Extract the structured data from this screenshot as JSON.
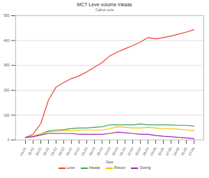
{
  "chart_data": {
    "type": "line",
    "title": "MCT Leve volume Inkaas",
    "subtitle": "Cabot cuts",
    "x_label": "Date",
    "categories": [
      "04-01",
      "11-01",
      "18-01",
      "25-01",
      "01-02",
      "08-02",
      "15-02",
      "22-02",
      "01-03",
      "08-03",
      "15-03",
      "22-03",
      "29-03",
      "05-04",
      "12-04",
      "19-04",
      "26-04",
      "03-05",
      "10-05",
      "17-05",
      "24-05",
      "31-05",
      "07-06"
    ],
    "series": [
      {
        "name": "Leve",
        "color": "#ea4335",
        "values": [
          10,
          23,
          66,
          160,
          213,
          231,
          247,
          258,
          274,
          293,
          311,
          338,
          354,
          367,
          380,
          394,
          412,
          407,
          412,
          418,
          426,
          434,
          444
        ]
      },
      {
        "name": "Inkaas",
        "color": "#34a853",
        "values": [
          10,
          15,
          24,
          36,
          40,
          42,
          46,
          48,
          48,
          51,
          53,
          61,
          61,
          61,
          61,
          64,
          61,
          61,
          61,
          61,
          59,
          59,
          56
        ]
      },
      {
        "name": "Retour",
        "color": "#fbbc04",
        "values": [
          10,
          15,
          24,
          32,
          35,
          37,
          37,
          40,
          40,
          40,
          40,
          45,
          53,
          51,
          48,
          48,
          51,
          48,
          45,
          45,
          43,
          40,
          37
        ]
      },
      {
        "name": "Overig",
        "color": "#9c27b0",
        "values": [
          10,
          13,
          20,
          26,
          26,
          26,
          26,
          23,
          23,
          23,
          23,
          26,
          31,
          29,
          26,
          23,
          23,
          18,
          15,
          13,
          10,
          8,
          5
        ]
      }
    ],
    "ylim": [
      0,
      500
    ],
    "yticks": [
      0,
      100,
      200,
      300,
      400,
      500
    ],
    "grid": true,
    "legend": "bottom"
  }
}
